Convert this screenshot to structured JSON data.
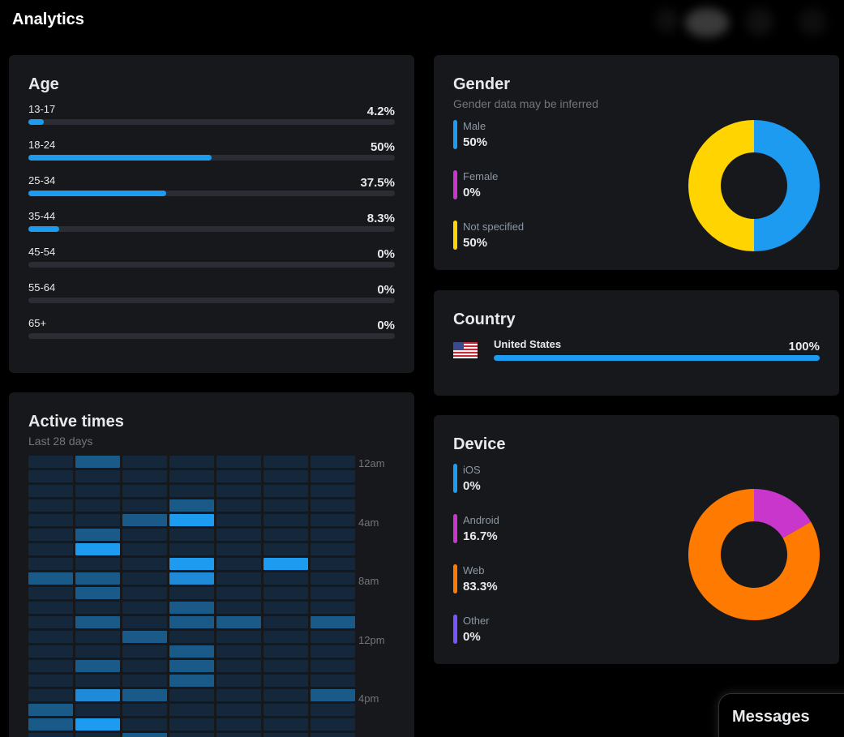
{
  "header": {
    "title": "Analytics"
  },
  "age": {
    "title": "Age",
    "rows": [
      {
        "label": "13-17",
        "value": "4.2%",
        "fraction": 0.042
      },
      {
        "label": "18-24",
        "value": "50%",
        "fraction": 0.5
      },
      {
        "label": "25-34",
        "value": "37.5%",
        "fraction": 0.375
      },
      {
        "label": "35-44",
        "value": "8.3%",
        "fraction": 0.083
      },
      {
        "label": "45-54",
        "value": "0%",
        "fraction": 0
      },
      {
        "label": "55-64",
        "value": "0%",
        "fraction": 0
      },
      {
        "label": "65+",
        "value": "0%",
        "fraction": 0
      }
    ]
  },
  "gender": {
    "title": "Gender",
    "subtitle": "Gender data may be inferred",
    "items": [
      {
        "label": "Male",
        "value": "50%",
        "fraction": 0.5,
        "color": "#1d9bf0"
      },
      {
        "label": "Female",
        "value": "0%",
        "fraction": 0,
        "color": "#c936cc"
      },
      {
        "label": "Not specified",
        "value": "50%",
        "fraction": 0.5,
        "color": "#ffd400"
      }
    ]
  },
  "country": {
    "title": "Country",
    "items": [
      {
        "label": "United States",
        "value": "100%",
        "fraction": 1.0,
        "flag": "us-flag-icon"
      }
    ]
  },
  "device": {
    "title": "Device",
    "items": [
      {
        "label": "iOS",
        "value": "0%",
        "fraction": 0,
        "color": "#1d9bf0"
      },
      {
        "label": "Android",
        "value": "16.7%",
        "fraction": 0.167,
        "color": "#c936cc"
      },
      {
        "label": "Web",
        "value": "83.3%",
        "fraction": 0.833,
        "color": "#ff7a00"
      },
      {
        "label": "Other",
        "value": "0%",
        "fraction": 0,
        "color": "#7856ff"
      }
    ]
  },
  "active_times": {
    "title": "Active times",
    "subtitle": "Last 28 days",
    "hour_labels": [
      "12am",
      "4am",
      "8am",
      "12pm",
      "4pm"
    ],
    "intensity_rows": [
      [
        0,
        1,
        0,
        0,
        0,
        0,
        0
      ],
      [
        0,
        0,
        0,
        0,
        0,
        0,
        0
      ],
      [
        0,
        0,
        0,
        0,
        0,
        0,
        0
      ],
      [
        0,
        0,
        0,
        1,
        0,
        0,
        0
      ],
      [
        0,
        0,
        1,
        3,
        0,
        0,
        0
      ],
      [
        0,
        1,
        0,
        0,
        0,
        0,
        0
      ],
      [
        0,
        3,
        0,
        0,
        0,
        0,
        0
      ],
      [
        0,
        0,
        0,
        3,
        0,
        3,
        0
      ],
      [
        1,
        1,
        0,
        2,
        0,
        0,
        0
      ],
      [
        0,
        1,
        0,
        0,
        0,
        0,
        0
      ],
      [
        0,
        0,
        0,
        1,
        0,
        0,
        0
      ],
      [
        0,
        1,
        0,
        1,
        1,
        0,
        1
      ],
      [
        0,
        0,
        1,
        0,
        0,
        0,
        0
      ],
      [
        0,
        0,
        0,
        1,
        0,
        0,
        0
      ],
      [
        0,
        1,
        0,
        1,
        0,
        0,
        0
      ],
      [
        0,
        0,
        0,
        1,
        0,
        0,
        0
      ],
      [
        0,
        2,
        1,
        0,
        0,
        0,
        1
      ],
      [
        1,
        0,
        0,
        0,
        0,
        0,
        0
      ],
      [
        1,
        3,
        0,
        0,
        0,
        0,
        0
      ],
      [
        0,
        0,
        1,
        0,
        0,
        0,
        0
      ]
    ],
    "intensity_colors": [
      "#15273a",
      "#1a5a88",
      "#1e8ad8",
      "#1d9bf0"
    ]
  },
  "messages": {
    "label": "Messages"
  },
  "colors": {
    "accent": "#1d9bf0",
    "card": "#16181c",
    "track": "#2a2d33"
  }
}
